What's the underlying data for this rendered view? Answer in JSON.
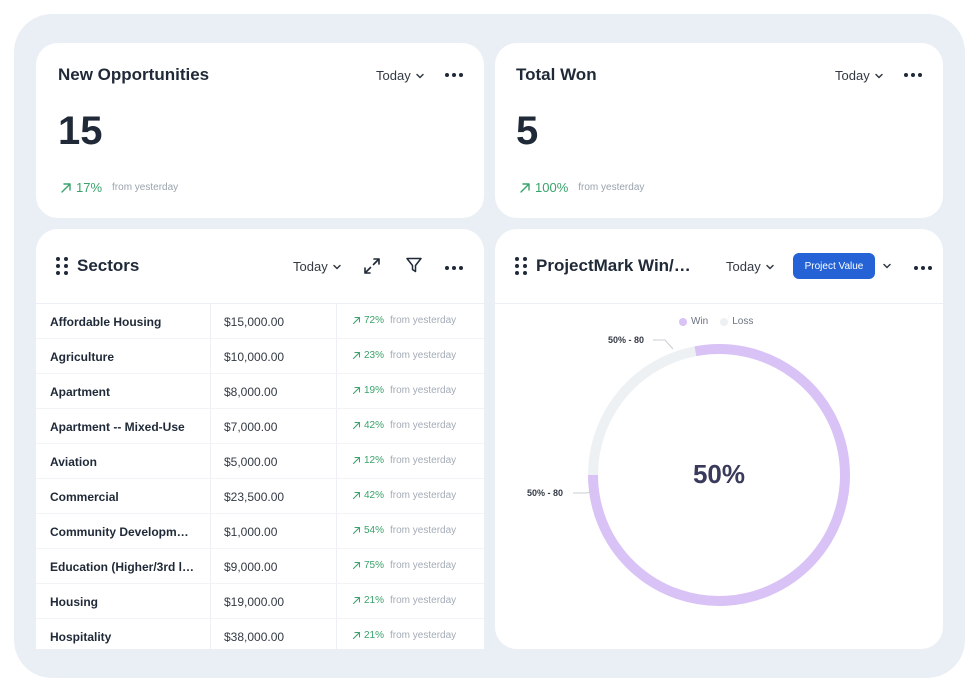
{
  "cards": {
    "new_opportunities": {
      "title": "New Opportunities",
      "period": "Today",
      "value": "15",
      "delta": "17%",
      "delta_sub": "from yesterday"
    },
    "total_won": {
      "title": "Total Won",
      "period": "Today",
      "value": "5",
      "delta": "100%",
      "delta_sub": "from yesterday"
    }
  },
  "sectors": {
    "title": "Sectors",
    "period": "Today",
    "rows": [
      {
        "name": "Affordable Housing",
        "value": "$15,000.00",
        "delta": "72%",
        "sub": "from yesterday"
      },
      {
        "name": "Agriculture",
        "value": "$10,000.00",
        "delta": "23%",
        "sub": "from yesterday"
      },
      {
        "name": "Apartment",
        "value": "$8,000.00",
        "delta": "19%",
        "sub": "from yesterday"
      },
      {
        "name": "Apartment -- Mixed-Use",
        "value": "$7,000.00",
        "delta": "42%",
        "sub": "from yesterday"
      },
      {
        "name": "Aviation",
        "value": "$5,000.00",
        "delta": "12%",
        "sub": "from yesterday"
      },
      {
        "name": "Commercial",
        "value": "$23,500.00",
        "delta": "42%",
        "sub": "from yesterday"
      },
      {
        "name": "Community Developm…",
        "value": "$1,000.00",
        "delta": "54%",
        "sub": "from yesterday"
      },
      {
        "name": "Education (Higher/3rd l…",
        "value": "$9,000.00",
        "delta": "75%",
        "sub": "from yesterday"
      },
      {
        "name": "Housing",
        "value": "$19,000.00",
        "delta": "21%",
        "sub": "from yesterday"
      },
      {
        "name": "Hospitality",
        "value": "$38,000.00",
        "delta": "21%",
        "sub": "from yesterday"
      }
    ]
  },
  "projectmark": {
    "title": "ProjectMark Win/…",
    "period": "Today",
    "value_button": "Project Value",
    "center_value": "50%"
  },
  "chart_data": {
    "type": "pie",
    "variant": "donut",
    "series": [
      {
        "name": "Win",
        "value": 50,
        "label": "50% - 80",
        "color": "#d9c2f5"
      },
      {
        "name": "Loss",
        "value": 50,
        "label": "50% - 80",
        "color": "#eef1f4"
      }
    ],
    "center_label": "50%",
    "legend_position": "top-center"
  },
  "colors": {
    "accent": "#2462d6",
    "positive": "#3aa26b",
    "win": "#d9c2f5",
    "loss": "#eef1f4"
  }
}
